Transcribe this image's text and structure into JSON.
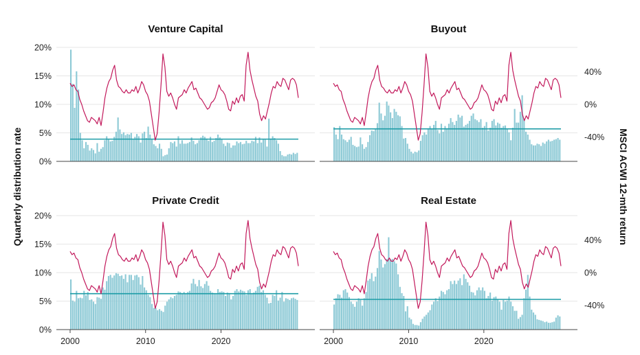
{
  "colors": {
    "bars": "#8ecad6",
    "avg_line": "#1c9ca6",
    "msci_line": "#c2185b"
  },
  "chart_data": {
    "type": "bar+line",
    "ylabel": "Quarterly distribution rate",
    "y2label": "MSCI ACWI 12-mth return",
    "ylim": [
      0,
      20
    ],
    "y2lim": [
      -70,
      70
    ],
    "y_ticks": [
      "0%",
      "5%",
      "10%",
      "15%",
      "20%"
    ],
    "y2_ticks": [
      "-40%",
      "0%",
      "40%"
    ],
    "x_ticks": [
      "2000",
      "2010",
      "2020"
    ],
    "grid": true,
    "msci_acwi_return": [
      26,
      22,
      24,
      18,
      16,
      6,
      0,
      -8,
      -14,
      -20,
      -22,
      -16,
      -18,
      -20,
      -24,
      -16,
      -26,
      -10,
      8,
      20,
      28,
      32,
      42,
      48,
      30,
      22,
      20,
      16,
      14,
      18,
      14,
      14,
      18,
      16,
      22,
      14,
      20,
      28,
      24,
      16,
      12,
      4,
      -12,
      -28,
      -44,
      -36,
      -10,
      24,
      62,
      46,
      16,
      10,
      14,
      8,
      0,
      -6,
      8,
      10,
      12,
      18,
      14,
      20,
      24,
      28,
      18,
      20,
      14,
      8,
      6,
      2,
      -2,
      -6,
      -4,
      2,
      4,
      8,
      16,
      24,
      18,
      16,
      12,
      4,
      -6,
      -8,
      4,
      0,
      8,
      2,
      10,
      12,
      4,
      48,
      64,
      42,
      30,
      20,
      10,
      4,
      -12,
      -20,
      -14,
      -18,
      -8,
      2,
      14,
      22,
      20,
      28,
      24,
      22,
      32,
      30,
      24,
      18,
      30,
      32,
      30,
      24,
      8
    ],
    "charts": [
      {
        "title": "Venture Capital",
        "average": 3.9,
        "values": [
          19.6,
          13.6,
          9.4,
          15.8,
          12.6,
          5.0,
          3.7,
          2.3,
          3.4,
          2.9,
          1.9,
          2.3,
          2.0,
          1.4,
          3.2,
          1.7,
          2.2,
          2.5,
          3.7,
          4.4,
          3.8,
          3.5,
          3.6,
          4.3,
          5.2,
          7.7,
          5.6,
          4.8,
          5.1,
          4.6,
          4.8,
          4.7,
          5.0,
          3.8,
          4.3,
          4.8,
          4.4,
          3.3,
          4.9,
          5.2,
          4.1,
          6.1,
          4.7,
          3.9,
          3.0,
          2.7,
          2.3,
          3.1,
          2.2,
          0.9,
          1.1,
          1.2,
          2.3,
          3.4,
          3.2,
          3.5,
          2.6,
          4.4,
          3.1,
          3.7,
          3.1,
          3.1,
          3.2,
          3.4,
          4.2,
          3.6,
          3.0,
          3.2,
          3.7,
          4.2,
          4.5,
          4.3,
          4.0,
          3.6,
          4.3,
          3.4,
          3.6,
          4.1,
          4.7,
          4.2,
          3.9,
          3.1,
          2.7,
          3.3,
          3.2,
          2.4,
          2.8,
          2.8,
          3.5,
          3.2,
          3.4,
          3.0,
          3.1,
          3.6,
          3.2,
          3.2,
          3.6,
          3.5,
          4.3,
          3.2,
          4.2,
          3.3,
          3.8,
          3.8,
          2.6,
          7.5,
          4.0,
          4.4,
          4.1,
          3.7,
          3.1,
          1.8,
          1.1,
          0.9,
          0.9,
          1.2,
          1.3,
          1.2,
          1.5,
          1.3,
          1.5
        ]
      },
      {
        "title": "Buyout",
        "average": 5.7,
        "values": [
          6.0,
          4.7,
          3.9,
          6.2,
          4.7,
          3.9,
          3.7,
          3.4,
          3.8,
          4.3,
          2.9,
          2.7,
          2.5,
          2.6,
          4.2,
          3.0,
          2.2,
          2.5,
          3.4,
          4.6,
          5.4,
          5.3,
          5.7,
          6.7,
          10.3,
          8.4,
          7.2,
          8.0,
          10.5,
          9.8,
          8.6,
          7.6,
          9.2,
          8.7,
          8.1,
          7.9,
          6.2,
          4.0,
          4.1,
          3.1,
          2.2,
          1.7,
          1.4,
          1.7,
          1.6,
          1.9,
          3.6,
          4.6,
          5.1,
          4.7,
          5.8,
          6.2,
          5.6,
          6.4,
          7.1,
          5.5,
          4.9,
          6.6,
          5.2,
          6.2,
          5.8,
          6.6,
          7.6,
          6.9,
          6.4,
          7.1,
          8.2,
          7.7,
          8.0,
          6.1,
          6.4,
          6.6,
          7.1,
          8.0,
          8.4,
          7.4,
          7.2,
          6.9,
          7.4,
          5.9,
          6.2,
          6.9,
          5.4,
          5.9,
          7.1,
          7.4,
          6.3,
          6.8,
          6.6,
          5.9,
          6.2,
          6.3,
          5.7,
          5.1,
          3.7,
          5.9,
          9.2,
          6.8,
          6.8,
          8.7,
          11.6,
          7.5,
          5.2,
          4.7,
          3.8,
          3.0,
          2.8,
          2.8,
          3.1,
          3.0,
          2.7,
          3.3,
          3.1,
          3.5,
          3.8,
          3.5,
          3.6,
          3.8,
          3.9,
          4.1,
          3.8
        ]
      },
      {
        "title": "Private Credit",
        "average": 6.3,
        "values": [
          8.8,
          5.1,
          4.9,
          6.8,
          5.5,
          5.6,
          5.5,
          6.8,
          6.0,
          6.6,
          5.2,
          5.3,
          4.9,
          4.5,
          5.7,
          5.6,
          5.4,
          7.4,
          7.0,
          8.5,
          9.4,
          9.6,
          9.1,
          9.5,
          9.9,
          9.8,
          9.4,
          9.5,
          8.9,
          9.7,
          8.3,
          9.6,
          9.6,
          8.7,
          9.5,
          9.6,
          9.2,
          7.9,
          9.4,
          7.4,
          6.9,
          6.1,
          5.7,
          4.5,
          3.8,
          3.8,
          3.4,
          3.6,
          3.3,
          3.1,
          4.2,
          4.9,
          5.3,
          5.7,
          5.5,
          5.9,
          6.1,
          6.7,
          6.6,
          6.3,
          6.6,
          6.3,
          6.6,
          6.8,
          8.1,
          8.9,
          8.0,
          7.6,
          8.7,
          7.6,
          7.3,
          8.0,
          8.5,
          7.7,
          6.8,
          6.5,
          6.4,
          6.2,
          7.1,
          6.6,
          6.7,
          6.6,
          5.9,
          6.5,
          6.4,
          5.3,
          5.9,
          6.8,
          7.1,
          6.7,
          7.0,
          6.8,
          6.7,
          6.1,
          6.9,
          7.1,
          6.2,
          6.5,
          6.8,
          7.5,
          7.7,
          6.6,
          6.9,
          6.1,
          5.6,
          4.6,
          4.7,
          6.1,
          5.9,
          6.9,
          5.1,
          5.6,
          6.6,
          4.9,
          5.5,
          5.4,
          5.2,
          5.5,
          5.6,
          5.4,
          5.2
        ]
      },
      {
        "title": "Real Estate",
        "average": 5.3,
        "values": [
          4.4,
          5.5,
          6.2,
          6.1,
          5.6,
          6.9,
          7.1,
          6.5,
          5.7,
          4.9,
          4.5,
          4.0,
          4.9,
          5.5,
          5.2,
          4.2,
          5.5,
          6.6,
          8.6,
          8.9,
          9.9,
          8.5,
          9.3,
          10.8,
          13.8,
          12.3,
          10.9,
          11.5,
          12.4,
          16.2,
          12.3,
          12.4,
          12.0,
          11.6,
          9.7,
          7.5,
          6.4,
          5.9,
          3.2,
          4.1,
          2.1,
          1.8,
          1.0,
          0.8,
          0.8,
          0.7,
          1.3,
          1.9,
          2.3,
          2.6,
          3.0,
          3.4,
          4.4,
          4.9,
          5.5,
          5.0,
          5.8,
          6.8,
          6.6,
          6.2,
          6.9,
          7.1,
          8.5,
          8.0,
          8.6,
          8.0,
          8.6,
          9.0,
          7.8,
          9.7,
          8.9,
          8.3,
          7.7,
          6.6,
          6.5,
          6.0,
          6.9,
          7.4,
          6.9,
          7.4,
          6.8,
          5.5,
          5.9,
          6.5,
          5.1,
          5.7,
          5.8,
          5.3,
          4.9,
          3.5,
          5.2,
          4.9,
          5.1,
          5.8,
          4.9,
          4.1,
          3.3,
          3.3,
          1.9,
          2.2,
          2.6,
          5.5,
          7.0,
          9.6,
          5.8,
          3.5,
          3.0,
          2.6,
          1.8,
          1.7,
          1.6,
          1.5,
          1.3,
          1.4,
          1.2,
          1.2,
          1.3,
          1.4,
          2.1,
          2.5,
          2.3
        ]
      }
    ]
  }
}
